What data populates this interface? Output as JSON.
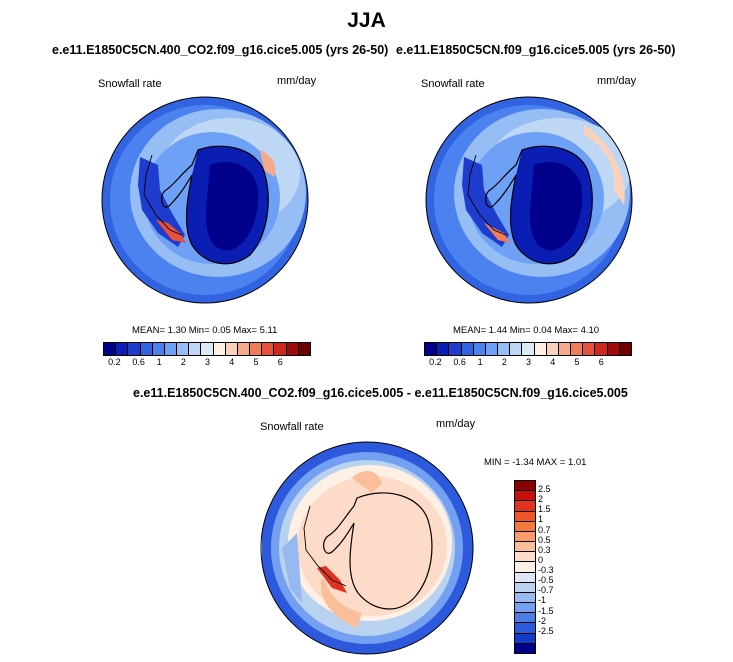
{
  "title": "JJA",
  "panels": [
    {
      "title": "e.e11.E1850C5CN.400_CO2.f09_g16.cice5.005 (yrs 26-50)",
      "variable": "Snowfall rate",
      "units": "mm/day",
      "stats": {
        "mean_label": "MEAN=",
        "mean": "1.30",
        "min_label": "Min=",
        "min": "0.05",
        "max_label": "Max=",
        "max": "5.11"
      }
    },
    {
      "title": "e.e11.E1850C5CN.f09_g16.cice5.005 (yrs 26-50)",
      "variable": "Snowfall rate",
      "units": "mm/day",
      "stats": {
        "mean_label": "MEAN=",
        "mean": "1.44",
        "min_label": "Min=",
        "min": "0.04",
        "max_label": "Max=",
        "max": "4.10"
      }
    },
    {
      "title": "e.e11.E1850C5CN.400_CO2.f09_g16.cice5.005 - e.e11.E1850C5CN.f09_g16.cice5.005",
      "variable": "Snowfall rate",
      "units": "mm/day",
      "stats_text": "MIN = -1.34 MAX =   1.01"
    }
  ],
  "colorbars": {
    "horizontal": {
      "labels": [
        "0.2",
        "0.6",
        "1",
        "2",
        "3",
        "4",
        "5",
        "6"
      ],
      "colors": [
        "#00008b",
        "#0a1eb4",
        "#1e3ccd",
        "#3264e1",
        "#4b82f0",
        "#6ea0f5",
        "#96bef5",
        "#bed7f5",
        "#dceaf5",
        "#fff0e1",
        "#fad2b9",
        "#f5aa8c",
        "#f07d5a",
        "#e6503c",
        "#cd2819",
        "#a00a0a",
        "#6e0000"
      ]
    },
    "vertical": {
      "labels": [
        "2.5",
        "2",
        "1.5",
        "1",
        "0.7",
        "0.5",
        "0.3",
        "0",
        "-0.3",
        "-0.5",
        "-0.7",
        "-1",
        "-1.5",
        "-2",
        "-2.5"
      ],
      "colors": [
        "#8b0000",
        "#c80f0a",
        "#e1321e",
        "#f05528",
        "#f5783c",
        "#fa9b69",
        "#fabe9b",
        "#fcdcc8",
        "#fff0e6",
        "#dce6f5",
        "#b9d2f0",
        "#96b9f0",
        "#73a0f0",
        "#4b7de6",
        "#2d5adc",
        "#143cc8",
        "#00008b"
      ]
    }
  },
  "chart_data": [
    {
      "type": "heatmap",
      "projection": "south-polar stereographic",
      "title": "e.e11.E1850C5CN.400_CO2.f09_g16.cice5.005 (yrs 26-50)",
      "variable": "Snowfall rate",
      "units": "mm/day",
      "mean": 1.3,
      "min": 0.05,
      "max": 5.11,
      "contour_levels": [
        0.2,
        0.4,
        0.6,
        0.8,
        1,
        1.5,
        2,
        2.5,
        3,
        3.5,
        4,
        4.5,
        5,
        5.5,
        6,
        6.5
      ]
    },
    {
      "type": "heatmap",
      "projection": "south-polar stereographic",
      "title": "e.e11.E1850C5CN.f09_g16.cice5.005 (yrs 26-50)",
      "variable": "Snowfall rate",
      "units": "mm/day",
      "mean": 1.44,
      "min": 0.04,
      "max": 4.1,
      "contour_levels": [
        0.2,
        0.4,
        0.6,
        0.8,
        1,
        1.5,
        2,
        2.5,
        3,
        3.5,
        4,
        4.5,
        5,
        5.5,
        6,
        6.5
      ]
    },
    {
      "type": "heatmap",
      "projection": "south-polar stereographic",
      "title": "e.e11.E1850C5CN.400_CO2.f09_g16.cice5.005 - e.e11.E1850C5CN.f09_g16.cice5.005",
      "variable": "Snowfall rate",
      "units": "mm/day",
      "min": -1.34,
      "max": 1.01,
      "contour_levels": [
        -2.5,
        -2,
        -1.5,
        -1,
        -0.7,
        -0.5,
        -0.3,
        0,
        0.3,
        0.5,
        0.7,
        1,
        1.5,
        2,
        2.5
      ]
    }
  ]
}
